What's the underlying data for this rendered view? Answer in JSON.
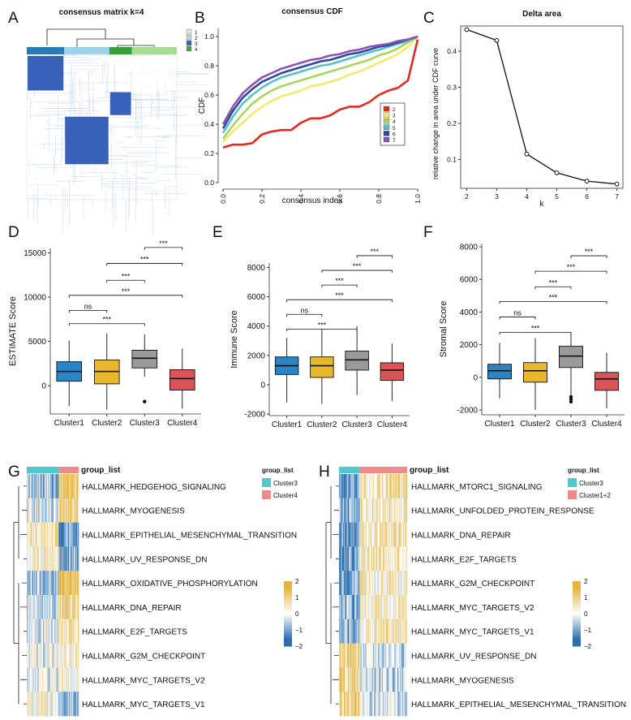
{
  "panel_letters": [
    "A",
    "B",
    "C",
    "D",
    "E",
    "F",
    "G",
    "H"
  ],
  "chart_data": [
    {
      "panel": "A",
      "type": "heatmap",
      "title": "consensus matrix k=4",
      "legend": [
        "1",
        "2",
        "3",
        "4"
      ],
      "legend_colors": [
        "#c9ecd0",
        "#b7dcd6",
        "#3a63b4",
        "#4e9a4d"
      ],
      "top_bar_colors": [
        "#2b7cb4",
        "#9fd1e8",
        "#3a9e3a",
        "#a8dc96"
      ],
      "cluster_fractions": [
        0.25,
        0.3,
        0.15,
        0.3
      ],
      "block_order_in_matrix": [
        3,
        1,
        2,
        0
      ]
    },
    {
      "panel": "B",
      "type": "line",
      "title": "consensus CDF",
      "xlabel": "consensus index",
      "ylabel": "CDF",
      "xlim": [
        0,
        1
      ],
      "ylim": [
        0,
        1
      ],
      "xticks": [
        "0.0",
        "0.2",
        "0.4",
        "0.6",
        "0.8",
        "1.0"
      ],
      "yticks": [
        "0.0",
        "0.2",
        "0.4",
        "0.6",
        "0.8",
        "1.0"
      ],
      "x": [
        0,
        0.05,
        0.1,
        0.15,
        0.2,
        0.25,
        0.3,
        0.35,
        0.4,
        0.45,
        0.5,
        0.55,
        0.6,
        0.65,
        0.7,
        0.75,
        0.8,
        0.85,
        0.9,
        0.95,
        1.0
      ],
      "series": [
        {
          "name": "2",
          "color": "#e8281e",
          "values": [
            0.24,
            0.26,
            0.26,
            0.27,
            0.33,
            0.35,
            0.36,
            0.36,
            0.41,
            0.44,
            0.44,
            0.46,
            0.5,
            0.52,
            0.52,
            0.55,
            0.6,
            0.63,
            0.65,
            0.7,
            0.98
          ]
        },
        {
          "name": "3",
          "color": "#f3e96b",
          "values": [
            0.28,
            0.35,
            0.41,
            0.47,
            0.52,
            0.56,
            0.59,
            0.61,
            0.63,
            0.66,
            0.67,
            0.69,
            0.71,
            0.74,
            0.76,
            0.79,
            0.82,
            0.85,
            0.88,
            0.93,
            1.0
          ]
        },
        {
          "name": "4",
          "color": "#a8d65a",
          "values": [
            0.3,
            0.39,
            0.47,
            0.54,
            0.59,
            0.63,
            0.66,
            0.68,
            0.7,
            0.72,
            0.74,
            0.76,
            0.78,
            0.8,
            0.82,
            0.84,
            0.87,
            0.89,
            0.92,
            0.96,
            1.0
          ]
        },
        {
          "name": "5",
          "color": "#56c2c8",
          "values": [
            0.34,
            0.45,
            0.54,
            0.6,
            0.65,
            0.69,
            0.72,
            0.74,
            0.76,
            0.78,
            0.8,
            0.81,
            0.83,
            0.85,
            0.87,
            0.89,
            0.91,
            0.93,
            0.95,
            0.97,
            1.0
          ]
        },
        {
          "name": "6",
          "color": "#2f47a3",
          "values": [
            0.37,
            0.49,
            0.58,
            0.64,
            0.69,
            0.72,
            0.75,
            0.77,
            0.79,
            0.81,
            0.83,
            0.84,
            0.86,
            0.88,
            0.89,
            0.91,
            0.93,
            0.94,
            0.96,
            0.98,
            1.0
          ]
        },
        {
          "name": "7",
          "color": "#8d52b5",
          "values": [
            0.4,
            0.52,
            0.61,
            0.67,
            0.72,
            0.75,
            0.78,
            0.8,
            0.82,
            0.84,
            0.85,
            0.87,
            0.88,
            0.9,
            0.91,
            0.93,
            0.94,
            0.95,
            0.97,
            0.98,
            1.0
          ]
        }
      ]
    },
    {
      "panel": "C",
      "type": "line",
      "title": "Delta area",
      "xlabel": "k",
      "ylabel": "relative change in area under CDF curve",
      "x": [
        2,
        3,
        4,
        5,
        6,
        7
      ],
      "values": [
        0.46,
        0.43,
        0.115,
        0.063,
        0.04,
        0.032
      ],
      "xticks": [
        "2",
        "3",
        "4",
        "5",
        "6",
        "7"
      ],
      "yticks": [
        "0.1",
        "0.2",
        "0.3",
        "0.4"
      ],
      "ylim": [
        0.02,
        0.47
      ]
    },
    {
      "panel": "D",
      "type": "box",
      "ylabel": "ESTIMATE Score",
      "categories": [
        "Cluster1",
        "Cluster2",
        "Cluster3",
        "Cluster4"
      ],
      "colors": [
        "#2a85c5",
        "#e8b72c",
        "#9a9a9a",
        "#d95357"
      ],
      "ylim": [
        -3200,
        15500
      ],
      "yticks": [
        0,
        5000,
        10000,
        15000
      ],
      "yticklabels": [
        "0",
        "5000",
        "10000",
        "15000"
      ],
      "boxes": [
        {
          "whisker_low": -2300,
          "q1": 500,
          "median": 1600,
          "q3": 2700,
          "whisker_high": 5100,
          "outliers": []
        },
        {
          "whisker_low": -2700,
          "q1": 200,
          "median": 1600,
          "q3": 2900,
          "whisker_high": 5900,
          "outliers": []
        },
        {
          "whisker_low": 1000,
          "q1": 2000,
          "median": 3100,
          "q3": 4000,
          "whisker_high": 5800,
          "outliers": [
            -1800
          ]
        },
        {
          "whisker_low": -2600,
          "q1": -500,
          "median": 800,
          "q3": 1800,
          "whisker_high": 4200,
          "outliers": []
        }
      ],
      "comparisons": [
        {
          "from": 3,
          "to": 4,
          "label": "***",
          "y": 15600
        },
        {
          "from": 2,
          "to": 4,
          "label": "***",
          "y": 13800
        },
        {
          "from": 2,
          "to": 3,
          "label": "***",
          "y": 11900
        },
        {
          "from": 1,
          "to": 4,
          "label": "***",
          "y": 10200
        },
        {
          "from": 1,
          "to": 2,
          "label": "ns",
          "y": 8500
        },
        {
          "from": 1,
          "to": 3,
          "label": "***",
          "y": 7000
        }
      ]
    },
    {
      "panel": "E",
      "type": "box",
      "ylabel": "Immune Score",
      "categories": [
        "Cluster1",
        "Cluster2",
        "Cluster3",
        "Cluster4"
      ],
      "colors": [
        "#2a85c5",
        "#e8b72c",
        "#9a9a9a",
        "#d95357"
      ],
      "ylim": [
        -2100,
        8300
      ],
      "yticks": [
        -2000,
        0,
        2000,
        4000,
        6000,
        8000
      ],
      "yticklabels": [
        "-2000",
        "0",
        "2000",
        "4000",
        "6000",
        "8000"
      ],
      "boxes": [
        {
          "whisker_low": -1200,
          "q1": 700,
          "median": 1300,
          "q3": 1900,
          "whisker_high": 3200,
          "outliers": []
        },
        {
          "whisker_low": -1300,
          "q1": 500,
          "median": 1300,
          "q3": 1900,
          "whisker_high": 3800,
          "outliers": []
        },
        {
          "whisker_low": -700,
          "q1": 1000,
          "median": 1700,
          "q3": 2300,
          "whisker_high": 4000,
          "outliers": []
        },
        {
          "whisker_low": -1100,
          "q1": 300,
          "median": 1000,
          "q3": 1500,
          "whisker_high": 2800,
          "outliers": []
        }
      ],
      "comparisons": [
        {
          "from": 3,
          "to": 4,
          "label": "***",
          "y": 8800
        },
        {
          "from": 2,
          "to": 4,
          "label": "***",
          "y": 7800
        },
        {
          "from": 2,
          "to": 3,
          "label": "***",
          "y": 6800
        },
        {
          "from": 1,
          "to": 4,
          "label": "***",
          "y": 5800
        },
        {
          "from": 1,
          "to": 2,
          "label": "ns",
          "y": 4800
        },
        {
          "from": 1,
          "to": 3,
          "label": "***",
          "y": 3800
        }
      ]
    },
    {
      "panel": "F",
      "type": "box",
      "ylabel": "Stromal Score",
      "categories": [
        "Cluster1",
        "Cluster2",
        "Cluster3",
        "Cluster4"
      ],
      "colors": [
        "#2a85c5",
        "#e8b72c",
        "#9a9a9a",
        "#d95357"
      ],
      "ylim": [
        -2300,
        8200
      ],
      "yticks": [
        -2000,
        0,
        2000,
        4000,
        6000,
        8000
      ],
      "yticklabels": [
        "-2000",
        "0",
        "2000",
        "4000",
        "6000",
        "8000"
      ],
      "boxes": [
        {
          "whisker_low": -1300,
          "q1": -100,
          "median": 400,
          "q3": 800,
          "whisker_high": 2100,
          "outliers": []
        },
        {
          "whisker_low": -2000,
          "q1": -300,
          "median": 400,
          "q3": 900,
          "whisker_high": 2400,
          "outliers": []
        },
        {
          "whisker_low": -1100,
          "q1": 600,
          "median": 1300,
          "q3": 1900,
          "whisker_high": 2700,
          "outliers": [
            -1200,
            -1350,
            -1500
          ]
        },
        {
          "whisker_low": -1900,
          "q1": -800,
          "median": -100,
          "q3": 300,
          "whisker_high": 1500,
          "outliers": []
        }
      ],
      "comparisons": [
        {
          "from": 3,
          "to": 4,
          "label": "***",
          "y": 7450
        },
        {
          "from": 2,
          "to": 4,
          "label": "***",
          "y": 6500
        },
        {
          "from": 2,
          "to": 3,
          "label": "***",
          "y": 5550
        },
        {
          "from": 1,
          "to": 4,
          "label": "***",
          "y": 4650
        },
        {
          "from": 1,
          "to": 2,
          "label": "ns",
          "y": 3700
        },
        {
          "from": 1,
          "to": 3,
          "label": "***",
          "y": 2750
        }
      ]
    },
    {
      "panel": "G",
      "type": "heatmap",
      "group_title": "group_list",
      "groups": [
        {
          "name": "Cluster3",
          "color": "#4fc8cf",
          "fraction": 0.62
        },
        {
          "name": "Cluster4",
          "color": "#f08a88",
          "fraction": 0.38
        }
      ],
      "rows": [
        {
          "label": "HALLMARK_HEDGEHOG_SIGNALING",
          "pattern": [
            -0.7,
            1.2
          ]
        },
        {
          "label": "HALLMARK_MYOGENESIS",
          "pattern": [
            -0.3,
            1.0
          ]
        },
        {
          "label": "HALLMARK_EPITHELIAL_MESENCHYMAL_TRANSITION",
          "pattern": [
            0.5,
            -1.2
          ]
        },
        {
          "label": "HALLMARK_UV_RESPONSE_DN",
          "pattern": [
            0.4,
            -1.0
          ]
        },
        {
          "label": "HALLMARK_OXIDATIVE_PHOSPHORYLATION",
          "pattern": [
            -0.6,
            1.5
          ]
        },
        {
          "label": "HALLMARK_DNA_REPAIR",
          "pattern": [
            -0.5,
            1.1
          ]
        },
        {
          "label": "HALLMARK_E2F_TARGETS",
          "pattern": [
            -0.3,
            0.6
          ]
        },
        {
          "label": "HALLMARK_G2M_CHECKPOINT",
          "pattern": [
            -0.2,
            0.4
          ]
        },
        {
          "label": "HALLMARK_MYC_TARGETS_V2",
          "pattern": [
            -0.1,
            0.3
          ]
        },
        {
          "label": "HALLMARK_MYC_TARGETS_V1",
          "pattern": [
            0.3,
            -0.7
          ]
        }
      ],
      "scale_ticks": [
        "2",
        "1",
        "0",
        "−1",
        "−2"
      ],
      "scale_range": [
        -2,
        2
      ]
    },
    {
      "panel": "H",
      "type": "heatmap",
      "group_title": "group_list",
      "groups": [
        {
          "name": "Cluster3",
          "color": "#4fc8cf",
          "fraction": 0.3
        },
        {
          "name": "Cluster1+2",
          "color": "#f08a88",
          "fraction": 0.7
        }
      ],
      "rows": [
        {
          "label": "HALLMARK_MTORC1_SIGNALING",
          "pattern": [
            -1.2,
            0.6
          ]
        },
        {
          "label": "HALLMARK_UNFOLDED_PROTEIN_RESPONSE",
          "pattern": [
            -1.0,
            0.5
          ]
        },
        {
          "label": "HALLMARK_DNA_REPAIR",
          "pattern": [
            -1.1,
            0.5
          ]
        },
        {
          "label": "HALLMARK_E2F_TARGETS",
          "pattern": [
            -1.1,
            0.5
          ]
        },
        {
          "label": "HALLMARK_G2M_CHECKPOINT",
          "pattern": [
            -1.0,
            0.4
          ]
        },
        {
          "label": "HALLMARK_MYC_TARGETS_V2",
          "pattern": [
            -0.9,
            0.4
          ]
        },
        {
          "label": "HALLMARK_MYC_TARGETS_V1",
          "pattern": [
            -0.9,
            0.4
          ]
        },
        {
          "label": "HALLMARK_UV_RESPONSE_DN",
          "pattern": [
            1.0,
            -0.4
          ]
        },
        {
          "label": "HALLMARK_MYOGENESIS",
          "pattern": [
            0.9,
            -0.4
          ]
        },
        {
          "label": "HALLMARK_EPITHELIAL_MESENCHYMAL_TRANSITION",
          "pattern": [
            0.9,
            -0.3
          ]
        }
      ],
      "scale_ticks": [
        "2",
        "1",
        "0",
        "−1",
        "−2"
      ],
      "scale_range": [
        -2,
        2
      ]
    }
  ]
}
